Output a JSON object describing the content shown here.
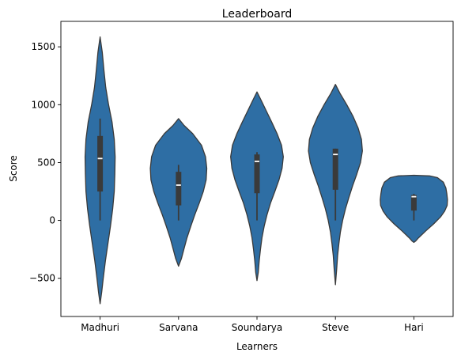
{
  "chart_data": {
    "type": "violin",
    "title": "Leaderboard",
    "xlabel": "Learners",
    "ylabel": "Score",
    "ylim": [
      -830,
      1720
    ],
    "yticks": [
      -500,
      0,
      500,
      1000,
      1500
    ],
    "ytick_labels": [
      "−500",
      "0",
      "500",
      "1000",
      "1500"
    ],
    "grid": false,
    "legend": "none",
    "colors": {
      "fill": "#2e6ea4",
      "edge": "#3a3a3a",
      "box": "#3a3a3a",
      "median": "#ffffff"
    },
    "categories": [
      "Madhuri",
      "Sarvana",
      "Soundarya",
      "Steve",
      "Hari"
    ],
    "violins": [
      {
        "name": "Madhuri",
        "kde_top": 1585,
        "kde_bottom": -720,
        "whisker": [
          0,
          880
        ],
        "q1": 250,
        "median": 535,
        "q3": 730,
        "profile": [
          [
            1585,
            0.0
          ],
          [
            1450,
            0.07
          ],
          [
            1300,
            0.12
          ],
          [
            1150,
            0.18
          ],
          [
            1000,
            0.27
          ],
          [
            850,
            0.38
          ],
          [
            700,
            0.45
          ],
          [
            550,
            0.48
          ],
          [
            400,
            0.47
          ],
          [
            250,
            0.45
          ],
          [
            100,
            0.4
          ],
          [
            -50,
            0.33
          ],
          [
            -200,
            0.25
          ],
          [
            -350,
            0.17
          ],
          [
            -500,
            0.1
          ],
          [
            -620,
            0.05
          ],
          [
            -720,
            0.0
          ]
        ]
      },
      {
        "name": "Sarvana",
        "kde_top": 880,
        "kde_bottom": -395,
        "whisker": [
          0,
          480
        ],
        "q1": 130,
        "median": 305,
        "q3": 420,
        "profile": [
          [
            880,
            0.0
          ],
          [
            820,
            0.18
          ],
          [
            750,
            0.45
          ],
          [
            650,
            0.73
          ],
          [
            550,
            0.86
          ],
          [
            450,
            0.9
          ],
          [
            350,
            0.88
          ],
          [
            250,
            0.79
          ],
          [
            150,
            0.66
          ],
          [
            50,
            0.52
          ],
          [
            -50,
            0.39
          ],
          [
            -150,
            0.27
          ],
          [
            -250,
            0.17
          ],
          [
            -330,
            0.09
          ],
          [
            -395,
            0.0
          ]
        ]
      },
      {
        "name": "Soundarya",
        "kde_top": 1110,
        "kde_bottom": -520,
        "whisker": [
          0,
          590
        ],
        "q1": 235,
        "median": 510,
        "q3": 570,
        "profile": [
          [
            1110,
            0.0
          ],
          [
            1050,
            0.11
          ],
          [
            950,
            0.29
          ],
          [
            850,
            0.47
          ],
          [
            750,
            0.64
          ],
          [
            650,
            0.78
          ],
          [
            550,
            0.84
          ],
          [
            450,
            0.8
          ],
          [
            350,
            0.7
          ],
          [
            250,
            0.57
          ],
          [
            150,
            0.43
          ],
          [
            50,
            0.32
          ],
          [
            -50,
            0.23
          ],
          [
            -150,
            0.16
          ],
          [
            -250,
            0.11
          ],
          [
            -350,
            0.07
          ],
          [
            -450,
            0.04
          ],
          [
            -520,
            0.0
          ]
        ]
      },
      {
        "name": "Steve",
        "kde_top": 1175,
        "kde_bottom": -555,
        "whisker": [
          0,
          620
        ],
        "q1": 265,
        "median": 570,
        "q3": 620,
        "profile": [
          [
            1175,
            0.0
          ],
          [
            1100,
            0.14
          ],
          [
            1000,
            0.36
          ],
          [
            900,
            0.56
          ],
          [
            800,
            0.72
          ],
          [
            700,
            0.83
          ],
          [
            600,
            0.86
          ],
          [
            500,
            0.8
          ],
          [
            400,
            0.68
          ],
          [
            300,
            0.55
          ],
          [
            200,
            0.43
          ],
          [
            100,
            0.32
          ],
          [
            0,
            0.23
          ],
          [
            -100,
            0.16
          ],
          [
            -200,
            0.11
          ],
          [
            -300,
            0.07
          ],
          [
            -420,
            0.04
          ],
          [
            -555,
            0.0
          ]
        ]
      },
      {
        "name": "Hari",
        "kde_top": 390,
        "kde_bottom": -190,
        "whisker": [
          0,
          230
        ],
        "q1": 85,
        "median": 205,
        "q3": 220,
        "profile": [
          [
            390,
            0.0
          ],
          [
            385,
            0.5
          ],
          [
            370,
            0.75
          ],
          [
            330,
            0.94
          ],
          [
            280,
            1.02
          ],
          [
            230,
            1.05
          ],
          [
            180,
            1.07
          ],
          [
            130,
            1.06
          ],
          [
            80,
            0.98
          ],
          [
            30,
            0.85
          ],
          [
            -30,
            0.63
          ],
          [
            -90,
            0.38
          ],
          [
            -150,
            0.15
          ],
          [
            -180,
            0.05
          ],
          [
            -190,
            0.0
          ]
        ]
      }
    ]
  }
}
